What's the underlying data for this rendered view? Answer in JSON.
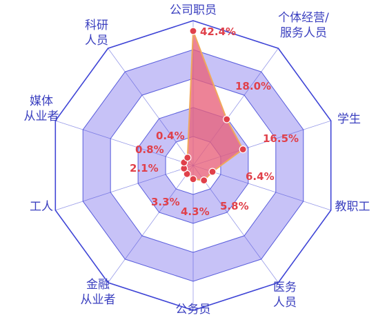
{
  "chart_data": {
    "type": "radar",
    "categories": [
      [
        "公司职员"
      ],
      [
        "个体经营/",
        "服务人员"
      ],
      [
        "学生"
      ],
      [
        "教职工"
      ],
      [
        "医务",
        "人员"
      ],
      [
        "公务员"
      ],
      [
        "金融",
        "从业者"
      ],
      [
        "工人"
      ],
      [
        "媒体",
        "从业者"
      ],
      [
        "科研",
        "人员"
      ]
    ],
    "values": [
      42.4,
      18.0,
      16.5,
      6.4,
      5.8,
      4.3,
      3.3,
      2.1,
      0.8,
      0.4
    ],
    "value_labels": [
      "42.4%",
      "18.0%",
      "16.5%",
      "6.4%",
      "5.8%",
      "4.3%",
      "3.3%",
      "2.1%",
      "0.8%",
      "0.4%"
    ],
    "unit": "%",
    "series": [
      {
        "values": [
          42.4,
          18.0,
          16.5,
          6.4,
          5.8,
          4.3,
          3.3,
          2.1,
          0.8,
          0.4
        ]
      }
    ],
    "colors": {
      "grid_line": "#3f45d6",
      "band_fill": "#c7c2f7",
      "area_fill": "#e8607a",
      "area_stroke": "#f0a85c",
      "point": "#e0404a",
      "label": "#3a3fbf",
      "value_label": "#e0404a"
    }
  }
}
